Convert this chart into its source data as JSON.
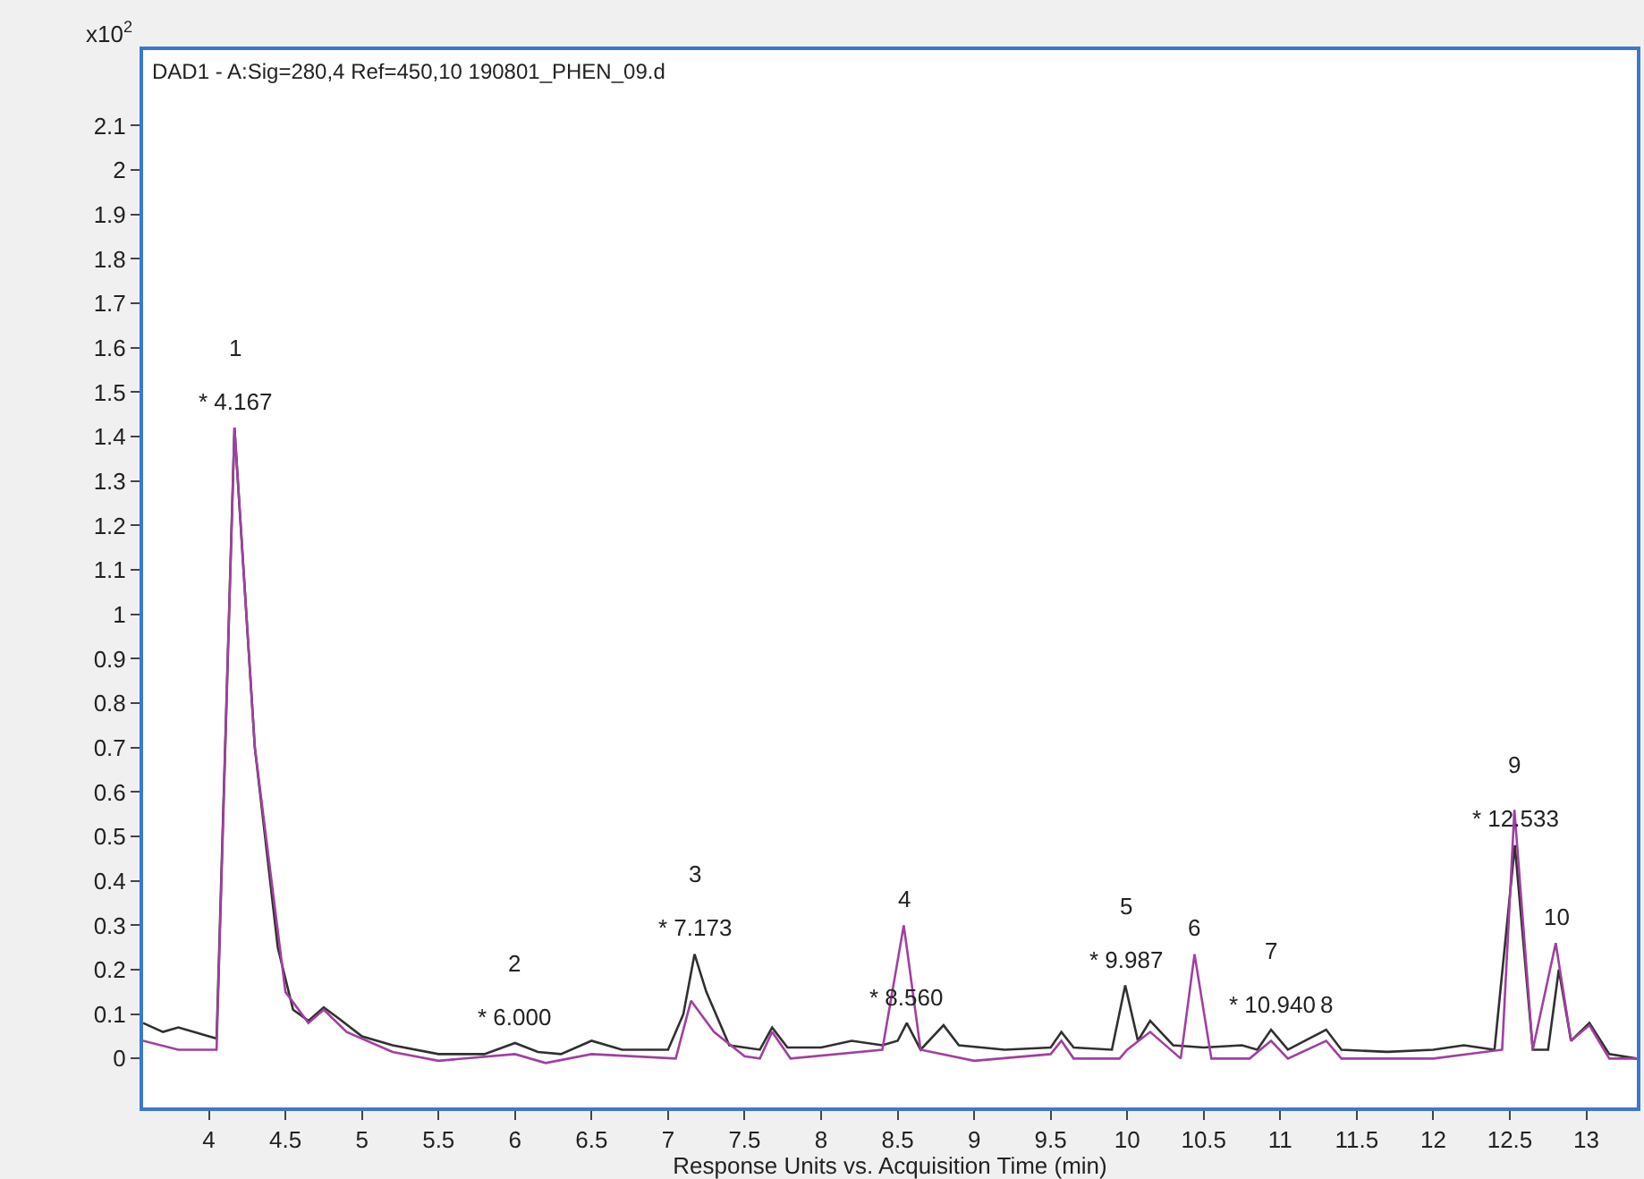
{
  "chart_data": {
    "type": "line",
    "title": "DAD1 - A:Sig=280,4 Ref=450,10 190801_PHEN_09.d",
    "xlabel": "Response Units vs. Acquisition Time (min)",
    "xlim": [
      3.57,
      13.33
    ],
    "xticks": [
      4,
      4.5,
      5,
      5.5,
      6,
      6.5,
      7,
      7.5,
      8,
      8.5,
      9,
      9.5,
      10,
      10.5,
      11,
      11.5,
      12,
      12.5,
      13
    ],
    "ylim": [
      -0.11,
      2.27
    ],
    "yticks": [
      0,
      0.1,
      0.2,
      0.3,
      0.4,
      0.5,
      0.6,
      0.7,
      0.8,
      0.9,
      1,
      1.1,
      1.2,
      1.3,
      1.4,
      1.5,
      1.6,
      1.7,
      1.8,
      1.9,
      2,
      2.1
    ],
    "marker": "none",
    "line_style": "solid",
    "series": [
      {
        "color": "#303030",
        "x": [
          3.57,
          3.7,
          3.8,
          3.9,
          4.05,
          4.167,
          4.3,
          4.45,
          4.55,
          4.65,
          4.75,
          4.85,
          5.0,
          5.2,
          5.5,
          5.8,
          6.0,
          6.15,
          6.3,
          6.5,
          6.7,
          7.0,
          7.1,
          7.173,
          7.25,
          7.4,
          7.6,
          7.68,
          7.78,
          8.0,
          8.2,
          8.4,
          8.5,
          8.56,
          8.65,
          8.8,
          8.9,
          9.2,
          9.5,
          9.57,
          9.65,
          9.9,
          9.987,
          10.07,
          10.15,
          10.3,
          10.5,
          10.75,
          10.85,
          10.94,
          11.05,
          11.3,
          11.4,
          11.7,
          12.0,
          12.2,
          12.4,
          12.533,
          12.65,
          12.75,
          12.82,
          12.9,
          13.02,
          13.15,
          13.33
        ],
        "values": [
          0.08,
          0.06,
          0.07,
          0.06,
          0.045,
          1.42,
          0.7,
          0.25,
          0.11,
          0.085,
          0.115,
          0.09,
          0.05,
          0.03,
          0.01,
          0.01,
          0.035,
          0.015,
          0.01,
          0.04,
          0.02,
          0.02,
          0.1,
          0.235,
          0.15,
          0.03,
          0.02,
          0.07,
          0.025,
          0.025,
          0.04,
          0.03,
          0.04,
          0.08,
          0.02,
          0.075,
          0.03,
          0.02,
          0.025,
          0.06,
          0.025,
          0.02,
          0.165,
          0.04,
          0.085,
          0.03,
          0.025,
          0.03,
          0.02,
          0.065,
          0.02,
          0.065,
          0.02,
          0.015,
          0.02,
          0.03,
          0.02,
          0.48,
          0.02,
          0.02,
          0.2,
          0.04,
          0.08,
          0.01,
          0.0
        ]
      },
      {
        "color": "#a040a0",
        "x": [
          3.57,
          3.8,
          4.05,
          4.167,
          4.3,
          4.5,
          4.65,
          4.75,
          4.9,
          5.2,
          5.5,
          6.0,
          6.2,
          6.5,
          7.05,
          7.15,
          7.3,
          7.5,
          7.6,
          7.68,
          7.8,
          8.4,
          8.54,
          8.65,
          9.0,
          9.5,
          9.57,
          9.65,
          9.95,
          10.0,
          10.15,
          10.35,
          10.44,
          10.55,
          10.8,
          10.94,
          11.05,
          11.3,
          11.4,
          12.0,
          12.45,
          12.53,
          12.65,
          12.8,
          12.9,
          13.02,
          13.15,
          13.33
        ],
        "values": [
          0.04,
          0.02,
          0.02,
          1.42,
          0.7,
          0.15,
          0.08,
          0.11,
          0.06,
          0.015,
          -0.005,
          0.01,
          -0.01,
          0.01,
          0.0,
          0.13,
          0.06,
          0.005,
          0.0,
          0.06,
          0.0,
          0.02,
          0.3,
          0.02,
          -0.005,
          0.01,
          0.04,
          0.0,
          0.0,
          0.02,
          0.06,
          0.0,
          0.235,
          0.0,
          0.0,
          0.04,
          0.0,
          0.04,
          0.0,
          0.0,
          0.02,
          0.56,
          0.02,
          0.26,
          0.04,
          0.075,
          0.0,
          0.0
        ]
      }
    ],
    "annotations": [
      "x10$^{2}$",
      {
        "text": "* 4.167",
        "x": 4.167,
        "y": 1.42
      },
      {
        "text": "1",
        "x": 4.167,
        "y": 1.42
      },
      {
        "text": "* 6.000",
        "x": 6.0,
        "y": 0.035
      },
      {
        "text": "2",
        "x": 6.0,
        "y": 0.035
      },
      {
        "text": "* 7.173",
        "x": 7.173,
        "y": 0.235
      },
      {
        "text": "3",
        "x": 7.173,
        "y": 0.235
      },
      {
        "text": "4",
        "x": 8.54,
        "y": 0.3
      },
      {
        "text": "* 8.560",
        "x": 8.56,
        "y": 0.08
      },
      {
        "text": "* 9.987",
        "x": 9.987,
        "y": 0.165
      },
      {
        "text": "5",
        "x": 9.987,
        "y": 0.165
      },
      {
        "text": "6",
        "x": 10.44,
        "y": 0.235
      },
      {
        "text": "* 10.940",
        "x": 10.94,
        "y": 0.065
      },
      {
        "text": "7",
        "x": 10.94,
        "y": 0.065
      },
      {
        "text": "8",
        "x": 11.3,
        "y": 0.065
      },
      {
        "text": "* 12.533",
        "x": 12.533,
        "y": 0.48
      },
      {
        "text": "9",
        "x": 12.533,
        "y": 0.48
      },
      {
        "text": "10",
        "x": 12.8,
        "y": 0.26
      }
    ]
  }
}
